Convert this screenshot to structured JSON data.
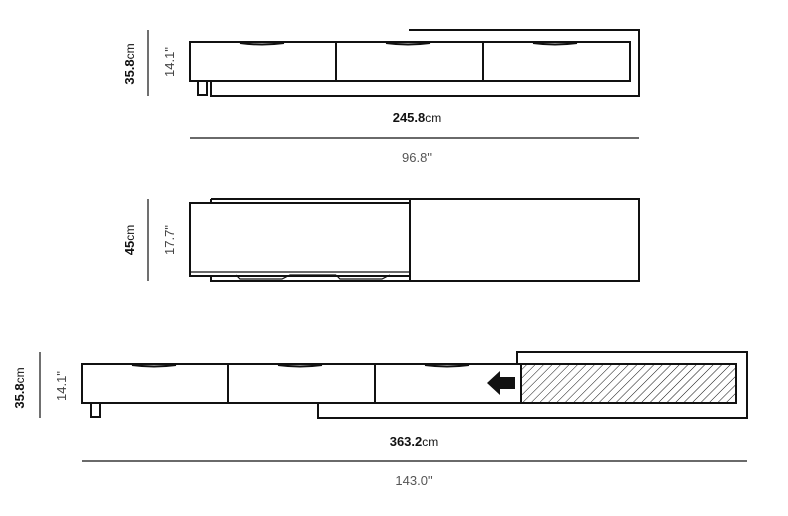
{
  "views": {
    "front_closed": {
      "height_cm_value": "35.8",
      "height_cm_unit": "cm",
      "height_in": "14.1\"",
      "width_cm_value": "245.8",
      "width_cm_unit": "cm",
      "width_in": "96.8\""
    },
    "top": {
      "depth_cm_value": "45",
      "depth_cm_unit": "cm",
      "depth_in": "17.7\""
    },
    "front_extended": {
      "height_cm_value": "35.8",
      "height_cm_unit": "cm",
      "height_in": "14.1\"",
      "width_cm_value": "363.2",
      "width_cm_unit": "cm",
      "width_in": "143.0\""
    }
  },
  "icons": {
    "direction": "arrow-left-icon",
    "extension_pattern": "hatch-pattern"
  }
}
